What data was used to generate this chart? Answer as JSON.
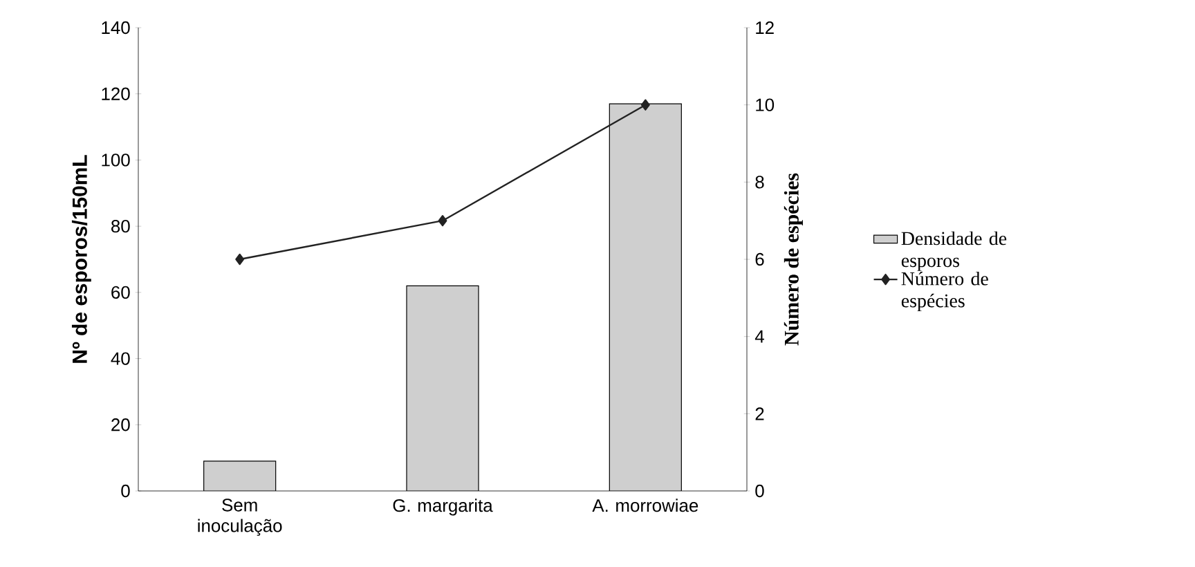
{
  "chart_data": {
    "type": "bar",
    "categories": [
      "Sem inoculação",
      "G. margarita",
      "A. morrowiae"
    ],
    "ylabel": "Nº de esporos/150mL",
    "y2label": "Número de espécies",
    "ylim": [
      0,
      140
    ],
    "yticks": [
      0,
      20,
      40,
      60,
      80,
      100,
      120,
      140
    ],
    "y2lim": [
      0,
      12
    ],
    "y2ticks": [
      0,
      2,
      4,
      6,
      8,
      10,
      12
    ],
    "legend": "right",
    "grid": false,
    "series": [
      {
        "name": "Densidade de esporos",
        "color": "#cfcfcf",
        "values": [
          9,
          62,
          117
        ]
      },
      {
        "name": "Número de espécies",
        "type": "line",
        "axis": "y2",
        "color": "#222222",
        "marker": "diamond",
        "line_style": "solid",
        "values": [
          6,
          7,
          10
        ]
      }
    ]
  }
}
